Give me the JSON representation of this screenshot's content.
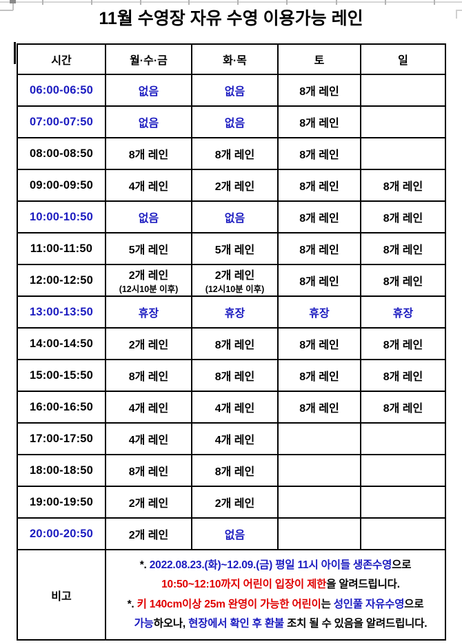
{
  "page": {
    "title": "11월 수영장 자유 수영 이용가능 레인"
  },
  "colors": {
    "black": "#000000",
    "blue": "#1b1bc0",
    "red": "#e00000"
  },
  "table": {
    "headers": [
      "시간",
      "월·수·금",
      "화·목",
      "토",
      "일"
    ],
    "rows": [
      {
        "time": "06:00-06:50",
        "time_color": "blue",
        "cells": [
          {
            "text": "없음",
            "color": "blue"
          },
          {
            "text": "없음",
            "color": "blue"
          },
          {
            "text": "8개 레인",
            "color": "black"
          },
          {
            "text": "",
            "color": "black"
          }
        ]
      },
      {
        "time": "07:00-07:50",
        "time_color": "blue",
        "cells": [
          {
            "text": "없음",
            "color": "blue"
          },
          {
            "text": "없음",
            "color": "blue"
          },
          {
            "text": "8개 레인",
            "color": "black"
          },
          {
            "text": "",
            "color": "black"
          }
        ]
      },
      {
        "time": "08:00-08:50",
        "time_color": "black",
        "cells": [
          {
            "text": "8개 레인",
            "color": "black"
          },
          {
            "text": "8개 레인",
            "color": "black"
          },
          {
            "text": "8개 레인",
            "color": "black"
          },
          {
            "text": "",
            "color": "black"
          }
        ]
      },
      {
        "time": "09:00-09:50",
        "time_color": "black",
        "cells": [
          {
            "text": "4개 레인",
            "color": "black"
          },
          {
            "text": "2개 레인",
            "color": "black"
          },
          {
            "text": "8개 레인",
            "color": "black"
          },
          {
            "text": "8개 레인",
            "color": "black"
          }
        ]
      },
      {
        "time": "10:00-10:50",
        "time_color": "blue",
        "cells": [
          {
            "text": "없음",
            "color": "blue"
          },
          {
            "text": "없음",
            "color": "blue"
          },
          {
            "text": "8개 레인",
            "color": "black"
          },
          {
            "text": "8개 레인",
            "color": "black"
          }
        ]
      },
      {
        "time": "11:00-11:50",
        "time_color": "black",
        "cells": [
          {
            "text": "5개 레인",
            "color": "black"
          },
          {
            "text": "5개 레인",
            "color": "black"
          },
          {
            "text": "8개 레인",
            "color": "black"
          },
          {
            "text": "8개 레인",
            "color": "black"
          }
        ]
      },
      {
        "time": "12:00-12:50",
        "time_color": "black",
        "cells": [
          {
            "text": "2개 레인",
            "sub": "(12시10분 이후)",
            "color": "black"
          },
          {
            "text": "2개 레인",
            "sub": "(12시10분 이후)",
            "color": "black"
          },
          {
            "text": "8개 레인",
            "color": "black"
          },
          {
            "text": "8개 레인",
            "color": "black"
          }
        ]
      },
      {
        "time": "13:00-13:50",
        "time_color": "blue",
        "cells": [
          {
            "text": "휴장",
            "color": "blue"
          },
          {
            "text": "휴장",
            "color": "blue"
          },
          {
            "text": "휴장",
            "color": "blue"
          },
          {
            "text": "휴장",
            "color": "blue"
          }
        ]
      },
      {
        "time": "14:00-14:50",
        "time_color": "black",
        "cells": [
          {
            "text": "2개 레인",
            "color": "black"
          },
          {
            "text": "8개 레인",
            "color": "black"
          },
          {
            "text": "8개 레인",
            "color": "black"
          },
          {
            "text": "8개 레인",
            "color": "black"
          }
        ]
      },
      {
        "time": "15:00-15:50",
        "time_color": "black",
        "cells": [
          {
            "text": "8개 레인",
            "color": "black"
          },
          {
            "text": "8개 레인",
            "color": "black"
          },
          {
            "text": "8개 레인",
            "color": "black"
          },
          {
            "text": "8개 레인",
            "color": "black"
          }
        ]
      },
      {
        "time": "16:00-16:50",
        "time_color": "black",
        "cells": [
          {
            "text": "4개 레인",
            "color": "black"
          },
          {
            "text": "4개 레인",
            "color": "black"
          },
          {
            "text": "8개 레인",
            "color": "black"
          },
          {
            "text": "8개 레인",
            "color": "black"
          }
        ]
      },
      {
        "time": "17:00-17:50",
        "time_color": "black",
        "cells": [
          {
            "text": "4개 레인",
            "color": "black"
          },
          {
            "text": "4개 레인",
            "color": "black"
          },
          {
            "text": "",
            "color": "black"
          },
          {
            "text": "",
            "color": "black"
          }
        ]
      },
      {
        "time": "18:00-18:50",
        "time_color": "black",
        "cells": [
          {
            "text": "8개 레인",
            "color": "black"
          },
          {
            "text": "8개 레인",
            "color": "black"
          },
          {
            "text": "",
            "color": "black"
          },
          {
            "text": "",
            "color": "black"
          }
        ]
      },
      {
        "time": "19:00-19:50",
        "time_color": "black",
        "cells": [
          {
            "text": "2개 레인",
            "color": "black"
          },
          {
            "text": "2개 레인",
            "color": "black"
          },
          {
            "text": "",
            "color": "black"
          },
          {
            "text": "",
            "color": "black"
          }
        ]
      },
      {
        "time": "20:00-20:50",
        "time_color": "blue",
        "cells": [
          {
            "text": "2개 레인",
            "color": "black"
          },
          {
            "text": "없음",
            "color": "blue"
          },
          {
            "text": "",
            "color": "black"
          },
          {
            "text": "",
            "color": "black"
          }
        ]
      }
    ],
    "note_label": "비고",
    "notes": [
      {
        "segments": [
          {
            "text": "*. ",
            "color": "black"
          },
          {
            "text": "2022.08.23.(화)~12.09.(금) 평일 11시 아이들 생존수영",
            "color": "blue"
          },
          {
            "text": "으로",
            "color": "black"
          }
        ]
      },
      {
        "segments": [
          {
            "text": "10:50~12:10까지 어린이 입장이 제한",
            "color": "red"
          },
          {
            "text": "을 알려드립니다.",
            "color": "black"
          }
        ]
      },
      {
        "segments": [
          {
            "text": "*. ",
            "color": "black"
          },
          {
            "text": "키 140cm이상 25m 완영이 가능한 어린이",
            "color": "red"
          },
          {
            "text": "는 ",
            "color": "black"
          },
          {
            "text": "성인풀 자유수영",
            "color": "blue"
          },
          {
            "text": "으로",
            "color": "black"
          }
        ]
      },
      {
        "segments": [
          {
            "text": "가능",
            "color": "blue"
          },
          {
            "text": "하오나, ",
            "color": "black"
          },
          {
            "text": "현장에서 확인 후 환불",
            "color": "blue"
          },
          {
            "text": " 조치 될 수 있음을 알려드립니다.",
            "color": "black"
          }
        ]
      }
    ]
  }
}
